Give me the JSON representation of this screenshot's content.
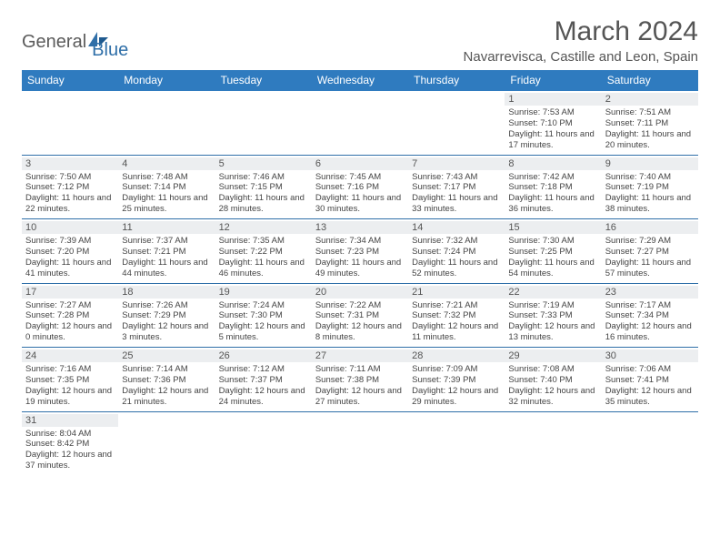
{
  "logo": {
    "text1": "General",
    "text2": "Blue"
  },
  "title": "March 2024",
  "location": "Navarrevisca, Castille and Leon, Spain",
  "colors": {
    "header_bg": "#2f7bbf",
    "header_text": "#ffffff",
    "rule": "#2f6fa8",
    "daybar": "#eceef0",
    "text": "#444444",
    "logo_blue": "#2f6fa8",
    "logo_gray": "#5a5a5a"
  },
  "weekdays": [
    "Sunday",
    "Monday",
    "Tuesday",
    "Wednesday",
    "Thursday",
    "Friday",
    "Saturday"
  ],
  "weeks": [
    [
      null,
      null,
      null,
      null,
      null,
      {
        "n": "1",
        "sr": "7:53 AM",
        "ss": "7:10 PM",
        "dl": "11 hours and 17 minutes."
      },
      {
        "n": "2",
        "sr": "7:51 AM",
        "ss": "7:11 PM",
        "dl": "11 hours and 20 minutes."
      }
    ],
    [
      {
        "n": "3",
        "sr": "7:50 AM",
        "ss": "7:12 PM",
        "dl": "11 hours and 22 minutes."
      },
      {
        "n": "4",
        "sr": "7:48 AM",
        "ss": "7:14 PM",
        "dl": "11 hours and 25 minutes."
      },
      {
        "n": "5",
        "sr": "7:46 AM",
        "ss": "7:15 PM",
        "dl": "11 hours and 28 minutes."
      },
      {
        "n": "6",
        "sr": "7:45 AM",
        "ss": "7:16 PM",
        "dl": "11 hours and 30 minutes."
      },
      {
        "n": "7",
        "sr": "7:43 AM",
        "ss": "7:17 PM",
        "dl": "11 hours and 33 minutes."
      },
      {
        "n": "8",
        "sr": "7:42 AM",
        "ss": "7:18 PM",
        "dl": "11 hours and 36 minutes."
      },
      {
        "n": "9",
        "sr": "7:40 AM",
        "ss": "7:19 PM",
        "dl": "11 hours and 38 minutes."
      }
    ],
    [
      {
        "n": "10",
        "sr": "7:39 AM",
        "ss": "7:20 PM",
        "dl": "11 hours and 41 minutes."
      },
      {
        "n": "11",
        "sr": "7:37 AM",
        "ss": "7:21 PM",
        "dl": "11 hours and 44 minutes."
      },
      {
        "n": "12",
        "sr": "7:35 AM",
        "ss": "7:22 PM",
        "dl": "11 hours and 46 minutes."
      },
      {
        "n": "13",
        "sr": "7:34 AM",
        "ss": "7:23 PM",
        "dl": "11 hours and 49 minutes."
      },
      {
        "n": "14",
        "sr": "7:32 AM",
        "ss": "7:24 PM",
        "dl": "11 hours and 52 minutes."
      },
      {
        "n": "15",
        "sr": "7:30 AM",
        "ss": "7:25 PM",
        "dl": "11 hours and 54 minutes."
      },
      {
        "n": "16",
        "sr": "7:29 AM",
        "ss": "7:27 PM",
        "dl": "11 hours and 57 minutes."
      }
    ],
    [
      {
        "n": "17",
        "sr": "7:27 AM",
        "ss": "7:28 PM",
        "dl": "12 hours and 0 minutes."
      },
      {
        "n": "18",
        "sr": "7:26 AM",
        "ss": "7:29 PM",
        "dl": "12 hours and 3 minutes."
      },
      {
        "n": "19",
        "sr": "7:24 AM",
        "ss": "7:30 PM",
        "dl": "12 hours and 5 minutes."
      },
      {
        "n": "20",
        "sr": "7:22 AM",
        "ss": "7:31 PM",
        "dl": "12 hours and 8 minutes."
      },
      {
        "n": "21",
        "sr": "7:21 AM",
        "ss": "7:32 PM",
        "dl": "12 hours and 11 minutes."
      },
      {
        "n": "22",
        "sr": "7:19 AM",
        "ss": "7:33 PM",
        "dl": "12 hours and 13 minutes."
      },
      {
        "n": "23",
        "sr": "7:17 AM",
        "ss": "7:34 PM",
        "dl": "12 hours and 16 minutes."
      }
    ],
    [
      {
        "n": "24",
        "sr": "7:16 AM",
        "ss": "7:35 PM",
        "dl": "12 hours and 19 minutes."
      },
      {
        "n": "25",
        "sr": "7:14 AM",
        "ss": "7:36 PM",
        "dl": "12 hours and 21 minutes."
      },
      {
        "n": "26",
        "sr": "7:12 AM",
        "ss": "7:37 PM",
        "dl": "12 hours and 24 minutes."
      },
      {
        "n": "27",
        "sr": "7:11 AM",
        "ss": "7:38 PM",
        "dl": "12 hours and 27 minutes."
      },
      {
        "n": "28",
        "sr": "7:09 AM",
        "ss": "7:39 PM",
        "dl": "12 hours and 29 minutes."
      },
      {
        "n": "29",
        "sr": "7:08 AM",
        "ss": "7:40 PM",
        "dl": "12 hours and 32 minutes."
      },
      {
        "n": "30",
        "sr": "7:06 AM",
        "ss": "7:41 PM",
        "dl": "12 hours and 35 minutes."
      }
    ],
    [
      {
        "n": "31",
        "sr": "8:04 AM",
        "ss": "8:42 PM",
        "dl": "12 hours and 37 minutes."
      },
      null,
      null,
      null,
      null,
      null,
      null
    ]
  ],
  "labels": {
    "sunrise": "Sunrise:",
    "sunset": "Sunset:",
    "daylight": "Daylight:"
  }
}
